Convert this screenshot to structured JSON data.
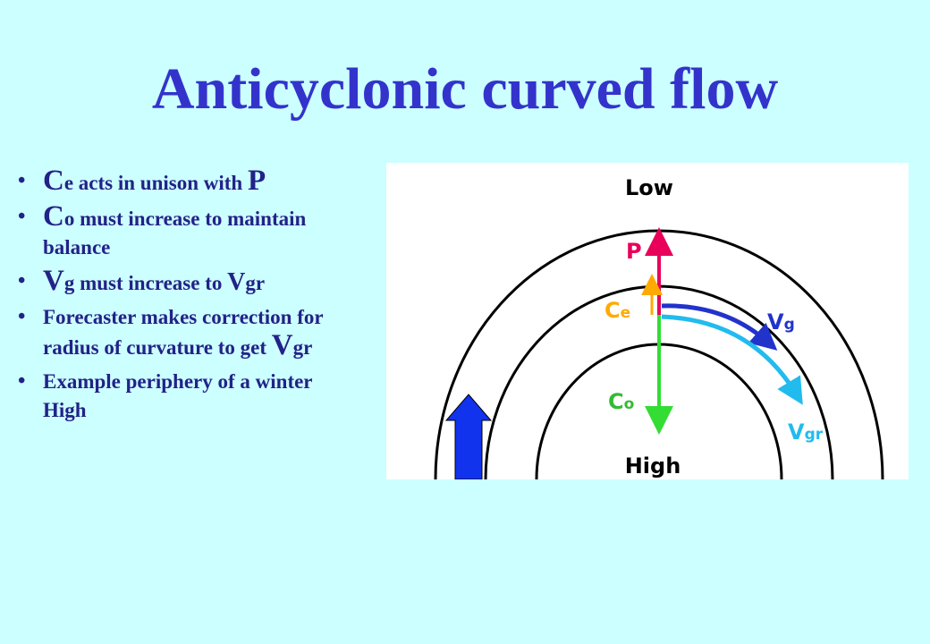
{
  "title": "Anticyclonic curved flow",
  "bullets": [
    {
      "parts": [
        {
          "text": "C",
          "size": "big"
        },
        {
          "text": "e acts in unison with ",
          "size": "small"
        },
        {
          "text": "P",
          "size": "big"
        }
      ]
    },
    {
      "parts": [
        {
          "text": "C",
          "size": "big"
        },
        {
          "text": "o must increase to maintain balance",
          "size": "small"
        }
      ]
    },
    {
      "parts": [
        {
          "text": "V",
          "size": "big"
        },
        {
          "text": "g must increase to ",
          "size": "small"
        },
        {
          "text": "V",
          "size": "mid"
        },
        {
          "text": "gr",
          "size": "small"
        }
      ]
    },
    {
      "parts": [
        {
          "text": "Forecaster makes correction for radius of curvature to get ",
          "size": "small"
        },
        {
          "text": "V",
          "size": "big"
        },
        {
          "text": "gr",
          "size": "small"
        }
      ]
    },
    {
      "parts": [
        {
          "text": "Example periphery of a winter High",
          "size": "small"
        }
      ]
    }
  ],
  "diagram": {
    "low": "Low",
    "high": "High",
    "p": "P",
    "ce": {
      "main": "C",
      "sub": "e"
    },
    "co": {
      "main": "C",
      "sub": "o"
    },
    "vg": {
      "main": "V",
      "sub": "g"
    },
    "vgr": {
      "main": "V",
      "sub": "gr"
    }
  }
}
